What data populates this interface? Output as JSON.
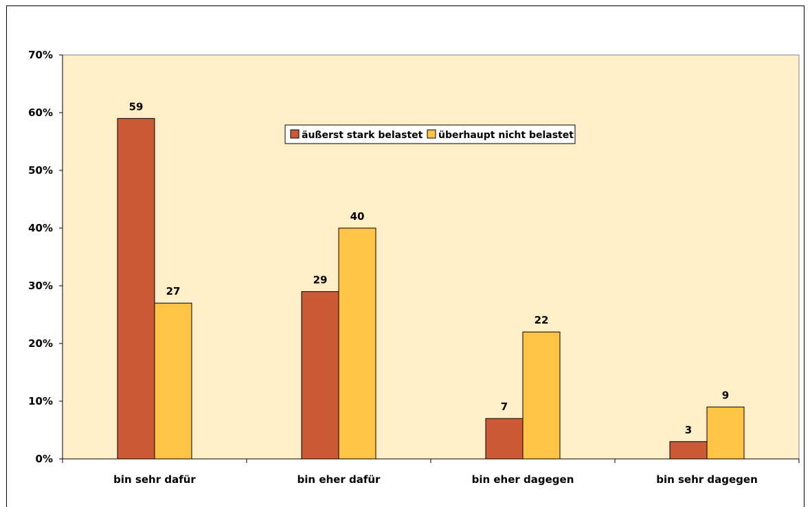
{
  "colors": {
    "plot_bg": "#FFEFC8",
    "series_1": "#CC5A36",
    "series_2": "#FFC445",
    "axis": "#000000"
  },
  "chart_data": {
    "type": "bar",
    "categories": [
      "bin sehr dafür",
      "bin eher dafür",
      "bin eher dagegen",
      "bin sehr dagegen"
    ],
    "series": [
      {
        "name": "äußerst stark belastet",
        "values": [
          59,
          29,
          7,
          3
        ]
      },
      {
        "name": "überhaupt nicht belastet",
        "values": [
          27,
          40,
          22,
          9
        ]
      }
    ],
    "ylim": [
      0,
      70
    ],
    "yticks": [
      0,
      10,
      20,
      30,
      40,
      50,
      60,
      70
    ],
    "ytick_labels": [
      "0%",
      "10%",
      "20%",
      "30%",
      "40%",
      "50%",
      "60%",
      "70%"
    ],
    "data_labels": true,
    "grid": false,
    "legend_position": "top-center",
    "title": "",
    "xlabel": "",
    "ylabel": ""
  }
}
